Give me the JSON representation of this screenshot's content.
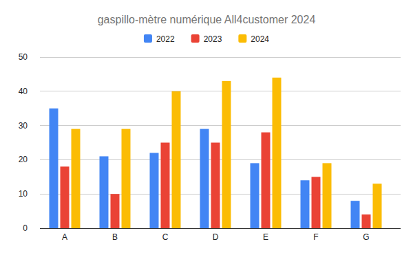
{
  "chart_data": {
    "type": "bar",
    "title": "gaspillo-mètre numérique All4customer 2024",
    "categories": [
      "A",
      "B",
      "C",
      "D",
      "E",
      "F",
      "G"
    ],
    "series": [
      {
        "name": "2022",
        "color": "#4285f4",
        "values": [
          35,
          21,
          22,
          29,
          19,
          14,
          8
        ]
      },
      {
        "name": "2023",
        "color": "#ea4335",
        "values": [
          18,
          10,
          25,
          25,
          28,
          15,
          4
        ]
      },
      {
        "name": "2024",
        "color": "#fbbc04",
        "values": [
          29,
          29,
          40,
          43,
          44,
          19,
          13
        ]
      }
    ],
    "ylim": [
      0,
      50
    ],
    "yticks": [
      0,
      10,
      20,
      30,
      40,
      50
    ],
    "grid": true,
    "legend": "top"
  }
}
